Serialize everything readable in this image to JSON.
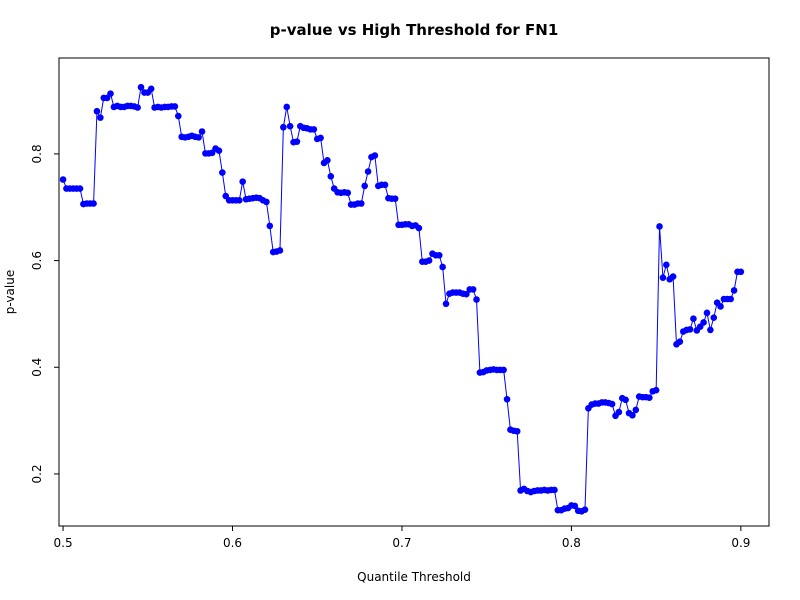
{
  "chart_data": {
    "type": "line",
    "title": "p-value vs High Threshold for FN1",
    "xlabel": "Quantile Threshold",
    "ylabel": "p-value",
    "xlim": [
      0.4976,
      0.9166
    ],
    "ylim": [
      0.1024,
      0.9798
    ],
    "x_ticks": [
      0.5,
      0.6,
      0.7,
      0.8,
      0.9
    ],
    "x_tick_labels": [
      "0.5",
      "0.6",
      "0.7",
      "0.8",
      "0.9"
    ],
    "y_ticks": [
      0.2,
      0.4,
      0.6,
      0.8
    ],
    "y_tick_labels": [
      "0.2",
      "0.4",
      "0.6",
      "0.8"
    ],
    "grid": false,
    "line_color": "#0000FF",
    "marker_color": "#0000FF",
    "series": [
      {
        "x": [
          0.5,
          0.502,
          0.504,
          0.506,
          0.508,
          0.51,
          0.512,
          0.514,
          0.516,
          0.518,
          0.52,
          0.522,
          0.524,
          0.526,
          0.528,
          0.53,
          0.532,
          0.534,
          0.536,
          0.538,
          0.54,
          0.542,
          0.544,
          0.546,
          0.548,
          0.55,
          0.552,
          0.554,
          0.556,
          0.558,
          0.56,
          0.562,
          0.564,
          0.566,
          0.568,
          0.57,
          0.572,
          0.574,
          0.576,
          0.578,
          0.58,
          0.582,
          0.584,
          0.586,
          0.588,
          0.59,
          0.592,
          0.594,
          0.596,
          0.598,
          0.6,
          0.602,
          0.604,
          0.606,
          0.608,
          0.61,
          0.612,
          0.614,
          0.616,
          0.618,
          0.62,
          0.622,
          0.624,
          0.626,
          0.628,
          0.63,
          0.632,
          0.634,
          0.636,
          0.638,
          0.64,
          0.642,
          0.644,
          0.646,
          0.648,
          0.65,
          0.652,
          0.654,
          0.656,
          0.658,
          0.66,
          0.662,
          0.664,
          0.666,
          0.668,
          0.67,
          0.672,
          0.674,
          0.676,
          0.678,
          0.68,
          0.682,
          0.684,
          0.686,
          0.688,
          0.69,
          0.692,
          0.694,
          0.696,
          0.698,
          0.7,
          0.702,
          0.704,
          0.706,
          0.708,
          0.71,
          0.712,
          0.714,
          0.716,
          0.718,
          0.72,
          0.722,
          0.724,
          0.726,
          0.728,
          0.73,
          0.732,
          0.734,
          0.736,
          0.738,
          0.74,
          0.742,
          0.744,
          0.746,
          0.748,
          0.75,
          0.752,
          0.754,
          0.756,
          0.758,
          0.76,
          0.762,
          0.764,
          0.766,
          0.768,
          0.77,
          0.772,
          0.774,
          0.776,
          0.778,
          0.78,
          0.782,
          0.784,
          0.786,
          0.788,
          0.79,
          0.792,
          0.794,
          0.796,
          0.798,
          0.8,
          0.802,
          0.804,
          0.806,
          0.808,
          0.81,
          0.812,
          0.814,
          0.816,
          0.818,
          0.82,
          0.822,
          0.824,
          0.826,
          0.828,
          0.83,
          0.832,
          0.834,
          0.836,
          0.838,
          0.84,
          0.842,
          0.844,
          0.846,
          0.848,
          0.85,
          0.852,
          0.854,
          0.856,
          0.858,
          0.86,
          0.862,
          0.864,
          0.866,
          0.868,
          0.87,
          0.872,
          0.874,
          0.876,
          0.878,
          0.88,
          0.882,
          0.884,
          0.886,
          0.888,
          0.89,
          0.892,
          0.894,
          0.896,
          0.898,
          0.9
        ],
        "y": [
          0.752,
          0.735,
          0.735,
          0.735,
          0.735,
          0.735,
          0.706,
          0.707,
          0.707,
          0.707,
          0.88,
          0.868,
          0.905,
          0.905,
          0.913,
          0.888,
          0.89,
          0.888,
          0.888,
          0.89,
          0.89,
          0.889,
          0.887,
          0.925,
          0.915,
          0.915,
          0.922,
          0.887,
          0.888,
          0.887,
          0.888,
          0.888,
          0.889,
          0.889,
          0.871,
          0.832,
          0.831,
          0.832,
          0.834,
          0.832,
          0.831,
          0.842,
          0.801,
          0.801,
          0.802,
          0.81,
          0.806,
          0.765,
          0.721,
          0.713,
          0.713,
          0.713,
          0.713,
          0.748,
          0.715,
          0.716,
          0.717,
          0.718,
          0.717,
          0.713,
          0.71,
          0.665,
          0.616,
          0.617,
          0.619,
          0.85,
          0.888,
          0.852,
          0.822,
          0.823,
          0.852,
          0.849,
          0.848,
          0.846,
          0.846,
          0.828,
          0.83,
          0.783,
          0.788,
          0.758,
          0.735,
          0.728,
          0.727,
          0.728,
          0.727,
          0.705,
          0.705,
          0.707,
          0.707,
          0.74,
          0.767,
          0.794,
          0.797,
          0.74,
          0.742,
          0.742,
          0.717,
          0.716,
          0.716,
          0.667,
          0.667,
          0.668,
          0.668,
          0.665,
          0.666,
          0.661,
          0.598,
          0.598,
          0.6,
          0.613,
          0.61,
          0.61,
          0.588,
          0.519,
          0.538,
          0.54,
          0.54,
          0.54,
          0.538,
          0.537,
          0.546,
          0.546,
          0.527,
          0.39,
          0.391,
          0.394,
          0.395,
          0.396,
          0.395,
          0.395,
          0.395,
          0.34,
          0.283,
          0.281,
          0.28,
          0.169,
          0.172,
          0.168,
          0.166,
          0.168,
          0.169,
          0.169,
          0.17,
          0.169,
          0.17,
          0.17,
          0.132,
          0.132,
          0.135,
          0.136,
          0.141,
          0.14,
          0.131,
          0.13,
          0.133,
          0.323,
          0.33,
          0.332,
          0.332,
          0.334,
          0.334,
          0.333,
          0.331,
          0.309,
          0.316,
          0.342,
          0.339,
          0.314,
          0.31,
          0.32,
          0.345,
          0.344,
          0.344,
          0.343,
          0.355,
          0.357,
          0.664,
          0.568,
          0.592,
          0.565,
          0.57,
          0.443,
          0.448,
          0.467,
          0.47,
          0.471,
          0.491,
          0.469,
          0.476,
          0.484,
          0.502,
          0.47,
          0.493,
          0.521,
          0.514,
          0.528,
          0.528,
          0.528,
          0.544,
          0.579,
          0.579
        ]
      }
    ]
  }
}
